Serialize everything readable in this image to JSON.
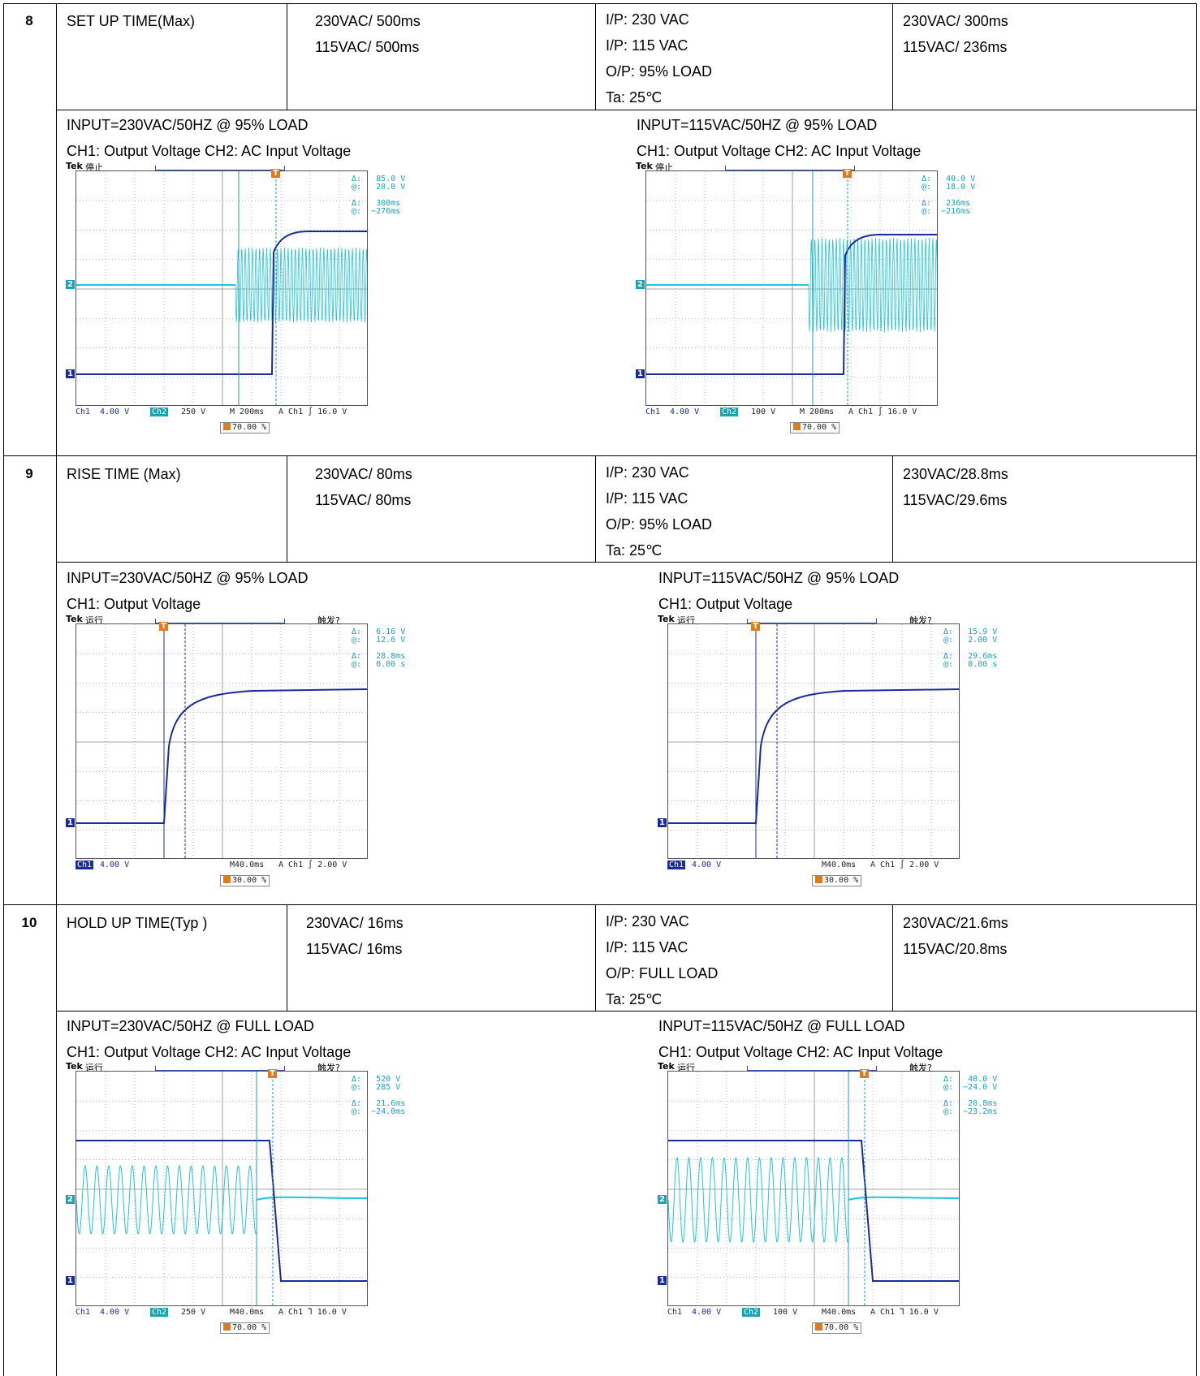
{
  "rows": [
    {
      "num": "8",
      "item": "SET UP TIME(Max)",
      "spec": [
        "230VAC/ 500ms",
        "115VAC/ 500ms"
      ],
      "cond": [
        "I/P:   230 VAC",
        "I/P:   115 VAC",
        "O/P:  95% LOAD",
        "Ta:  25℃"
      ],
      "result": [
        "230VAC/ 300ms",
        "115VAC/ 236ms"
      ],
      "scopes": [
        {
          "title": "INPUT=230VAC/50HZ @ 95% LOAD",
          "channels": "CH1:  Output Voltage    CH2:  AC Input Voltage",
          "status": "停止",
          "trigger_label": "",
          "readout": "Δ:   85.0 V\n@:   20.0 V\n\nΔ:   300ms\n@:  −276ms",
          "foot": {
            "ch1": "Ch1",
            "ch1v": "4.00 V",
            "ch2": "Ch2",
            "ch2v": "250 V",
            "time": "M 200ms",
            "trig": "A  Ch1  ∫   16.0 V"
          },
          "trig_pct": "70.00 %"
        },
        {
          "title": "INPUT=115VAC/50HZ @ 95% LOAD",
          "channels": "CH1:  Output Voltage    CH2:  AC Input Voltage",
          "status": "停止",
          "trigger_label": "",
          "readout": "Δ:   40.0 V\n@:   18.0 V\n\nΔ:   236ms\n@:  −216ms",
          "foot": {
            "ch1": "Ch1",
            "ch1v": "4.00 V",
            "ch2": "Ch2",
            "ch2v": "100 V",
            "time": "M 200ms",
            "trig": "A  Ch1  ∫   16.0 V"
          },
          "trig_pct": "70.00 %"
        }
      ]
    },
    {
      "num": "9",
      "item": "RISE TIME (Max)",
      "spec": [
        "230VAC/ 80ms",
        "115VAC/ 80ms"
      ],
      "cond": [
        "I/P:   230 VAC",
        "I/P:   115 VAC",
        "O/P:  95% LOAD",
        "Ta:  25℃"
      ],
      "result": [
        "230VAC/28.8ms",
        "115VAC/29.6ms"
      ],
      "scopes": [
        {
          "title": "INPUT=230VAC/50HZ @ 95% LOAD",
          "channels": "CH1:  Output Voltage",
          "status": "运行",
          "trigger_label": "触发?",
          "readout": "Δ:   6.16 V\n@:   12.6 V\n\nΔ:   28.8ms\n@:   0.00 s",
          "foot": {
            "ch1": "Ch1",
            "ch1v": "4.00 V",
            "ch2": "",
            "ch2v": "",
            "time": "M40.0ms",
            "trig": "A  Ch1  ∫   2.00 V"
          },
          "trig_pct": "30.00 %"
        },
        {
          "title": "INPUT=115VAC/50HZ @ 95% LOAD",
          "channels": "CH1:  Output Voltage",
          "status": "运行",
          "trigger_label": "触发?",
          "readout": "Δ:   15.9 V\n@:   2.00 V\n\nΔ:   29.6ms\n@:   0.00 s",
          "foot": {
            "ch1": "Ch1",
            "ch1v": "4.00 V",
            "ch2": "",
            "ch2v": "",
            "time": "M40.0ms",
            "trig": "A  Ch1  ∫   2.00 V"
          },
          "trig_pct": "30.00 %"
        }
      ]
    },
    {
      "num": "10",
      "item": "HOLD UP TIME(Typ )",
      "spec": [
        "230VAC/ 16ms",
        "115VAC/ 16ms"
      ],
      "cond": [
        "I/P:   230 VAC",
        "I/P:   115 VAC",
        "O/P:  FULL LOAD",
        "Ta:  25℃"
      ],
      "result": [
        "230VAC/21.6ms",
        "115VAC/20.8ms"
      ],
      "scopes": [
        {
          "title": "INPUT=230VAC/50HZ @ FULL LOAD",
          "channels": "CH1:  Output Voltage    CH2:  AC Input Voltage",
          "status": "运行",
          "trigger_label": "触发?",
          "readout": "Δ:   520 V\n@:   285 V\n\nΔ:   21.6ms\n@:  −24.0ms",
          "foot": {
            "ch1": "Ch1",
            "ch1v": "4.00 V",
            "ch2": "Ch2",
            "ch2v": "250 V",
            "time": "M40.0ms",
            "trig": "A  Ch1  ⅂   16.0 V"
          },
          "trig_pct": "70.00 %"
        },
        {
          "title": "INPUT=115VAC/50HZ @ FULL LOAD",
          "channels": "CH1:  Output Voltage    CH2:  AC Input Voltage",
          "status": "运行",
          "trigger_label": "触发?",
          "readout": "Δ:   40.0 V\n@:  −24.0 V\n\nΔ:   20.8ms\n@:  −23.2ms",
          "foot": {
            "ch1": "Ch1",
            "ch1v": "4.00 V",
            "ch2": "Ch2",
            "ch2v": "100 V",
            "time": "M40.0ms",
            "trig": "A  Ch1  ⅂   16.0 V"
          },
          "trig_pct": "70.00 %"
        }
      ]
    }
  ],
  "colors": {
    "ch1": "#1b2c9a",
    "ch2": "#22c6d6",
    "cursor": "#1aa3b5",
    "trigger": "#e07b1b"
  }
}
